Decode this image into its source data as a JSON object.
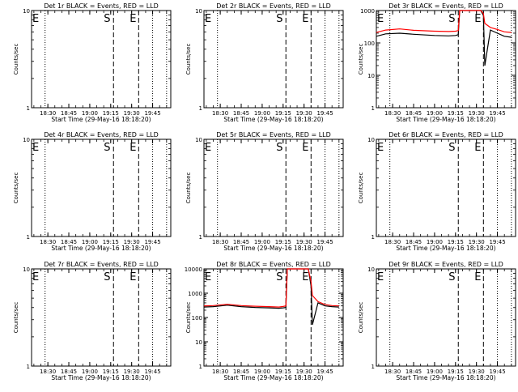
{
  "figure": {
    "x_tick_labels": [
      "18:30",
      "18:45",
      "19:00",
      "19:15",
      "19:30",
      "19:45"
    ],
    "x_axis_label": "Start Time (29-May-16 18:18:20)",
    "y_axis_label": "Counts/sec",
    "marker_labels": {
      "E": "E",
      "S": "S",
      "Ei": "E"
    },
    "colors": {
      "events": "#000000",
      "lld": "#ff0000",
      "frame": "#000000"
    }
  },
  "chart_data": [
    {
      "type": "line",
      "title": "Det 1r  BLACK = Events,  RED = LLD",
      "x_range": [
        "18:18:20",
        "19:58"
      ],
      "ylim": [
        1,
        10
      ],
      "yscale": "log",
      "y_tick_labels": [
        "1",
        "10"
      ],
      "markers": {
        "E": "18:18:20",
        "S": "19:17",
        "E_end": "19:35"
      },
      "series": []
    },
    {
      "type": "line",
      "title": "Det 2r  BLACK = Events,  RED = LLD",
      "x_range": [
        "18:18:20",
        "19:58"
      ],
      "ylim": [
        1,
        10
      ],
      "yscale": "log",
      "y_tick_labels": [
        "1",
        "10"
      ],
      "markers": {
        "E": "18:18:20",
        "S": "19:17",
        "E_end": "19:35"
      },
      "series": []
    },
    {
      "type": "line",
      "title": "Det 3r  BLACK = Events,  RED = LLD",
      "x_range": [
        "18:18:20",
        "19:58"
      ],
      "ylim": [
        1,
        1000
      ],
      "yscale": "log",
      "y_tick_labels": [
        "1",
        "10",
        "100",
        "1000"
      ],
      "markers": {
        "E": "18:18:20",
        "S": "19:17",
        "E_end": "19:35"
      },
      "series": [
        {
          "color": "#000000",
          "x": [
            "18:18",
            "18:25",
            "18:35",
            "18:45",
            "19:00",
            "19:10",
            "19:15",
            "19:17",
            "19:18",
            "19:20",
            "19:31",
            "19:33",
            "19:35",
            "19:36",
            "19:40",
            "19:45",
            "19:50",
            "19:55"
          ],
          "y": [
            160,
            190,
            200,
            185,
            170,
            165,
            170,
            180,
            1000,
            1000,
            1000,
            1000,
            700,
            20,
            250,
            200,
            160,
            150
          ]
        },
        {
          "color": "#ff0000",
          "x": [
            "18:18",
            "18:25",
            "18:35",
            "18:45",
            "19:00",
            "19:10",
            "19:15",
            "19:17",
            "19:18",
            "19:20",
            "19:31",
            "19:33",
            "19:35",
            "19:36",
            "19:40",
            "19:45",
            "19:50",
            "19:55"
          ],
          "y": [
            210,
            250,
            270,
            245,
            230,
            225,
            230,
            240,
            1000,
            1000,
            1000,
            1000,
            800,
            400,
            300,
            260,
            220,
            210
          ]
        }
      ]
    },
    {
      "type": "line",
      "title": "Det 4r  BLACK = Events,  RED = LLD",
      "x_range": [
        "18:18:20",
        "19:58"
      ],
      "ylim": [
        1,
        10
      ],
      "yscale": "log",
      "y_tick_labels": [
        "1",
        "10"
      ],
      "markers": {
        "E": "18:18:20",
        "S": "19:17",
        "E_end": "19:35"
      },
      "series": []
    },
    {
      "type": "line",
      "title": "Det 5r  BLACK = Events,  RED = LLD",
      "x_range": [
        "18:18:20",
        "19:58"
      ],
      "ylim": [
        1,
        10
      ],
      "yscale": "log",
      "y_tick_labels": [
        "1",
        "10"
      ],
      "markers": {
        "E": "18:18:20",
        "S": "19:17",
        "E_end": "19:35"
      },
      "series": []
    },
    {
      "type": "line",
      "title": "Det 6r  BLACK = Events,  RED = LLD",
      "x_range": [
        "18:18:20",
        "19:58"
      ],
      "ylim": [
        1,
        10
      ],
      "yscale": "log",
      "y_tick_labels": [
        "1",
        "10"
      ],
      "markers": {
        "E": "18:18:20",
        "S": "19:17",
        "E_end": "19:35"
      },
      "series": []
    },
    {
      "type": "line",
      "title": "Det 7r  BLACK = Events,  RED = LLD",
      "x_range": [
        "18:18:20",
        "19:58"
      ],
      "ylim": [
        1,
        10
      ],
      "yscale": "log",
      "y_tick_labels": [
        "1",
        "10"
      ],
      "markers": {
        "E": "18:18:20",
        "S": "19:17",
        "E_end": "19:35"
      },
      "series": []
    },
    {
      "type": "line",
      "title": "Det 8r  BLACK = Events,  RED = LLD",
      "x_range": [
        "18:18:20",
        "19:58"
      ],
      "ylim": [
        1,
        10000
      ],
      "yscale": "log",
      "y_tick_labels": [
        "1",
        "10",
        "100",
        "1000",
        "10000"
      ],
      "markers": {
        "E": "18:18:20",
        "S": "19:17",
        "E_end": "19:35"
      },
      "series": [
        {
          "color": "#000000",
          "x": [
            "18:18",
            "18:25",
            "18:35",
            "18:45",
            "18:55",
            "19:05",
            "19:12",
            "19:15",
            "19:17",
            "19:18",
            "19:20",
            "19:30",
            "19:33",
            "19:35",
            "19:36",
            "19:40",
            "19:45",
            "19:50",
            "19:55"
          ],
          "y": [
            270,
            280,
            320,
            280,
            260,
            250,
            240,
            250,
            260,
            10000,
            10000,
            10000,
            10000,
            2000,
            50,
            400,
            300,
            280,
            270
          ]
        },
        {
          "color": "#ff0000",
          "x": [
            "18:18",
            "18:25",
            "18:35",
            "18:45",
            "18:55",
            "19:05",
            "19:12",
            "19:15",
            "19:17",
            "19:18",
            "19:20",
            "19:30",
            "19:33",
            "19:35",
            "19:36",
            "19:40",
            "19:45",
            "19:50",
            "19:55"
          ],
          "y": [
            300,
            310,
            350,
            310,
            290,
            280,
            270,
            285,
            300,
            10000,
            10000,
            10000,
            10000,
            3000,
            800,
            450,
            340,
            310,
            300
          ]
        }
      ]
    },
    {
      "type": "line",
      "title": "Det 9r  BLACK = Events,  RED = LLD",
      "x_range": [
        "18:18:20",
        "19:58"
      ],
      "ylim": [
        1,
        10
      ],
      "yscale": "log",
      "y_tick_labels": [
        "1",
        "10"
      ],
      "markers": {
        "E": "18:18:20",
        "S": "19:17",
        "E_end": "19:35"
      },
      "series": []
    }
  ]
}
